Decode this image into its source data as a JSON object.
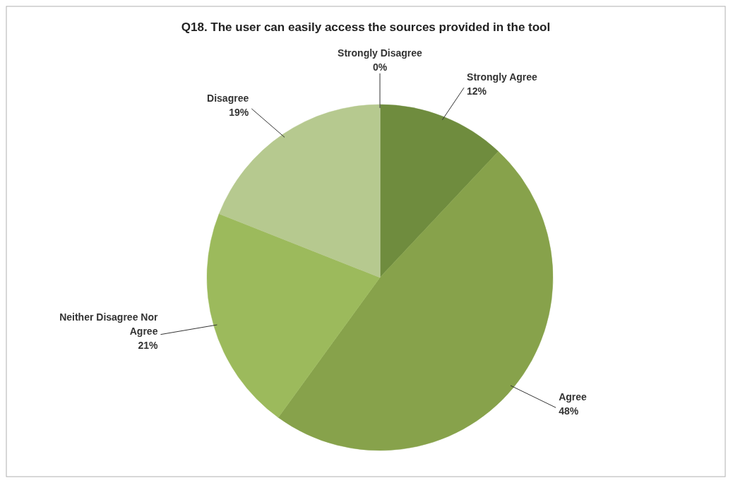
{
  "chart_data": {
    "type": "pie",
    "title": "Q18. The user can easily access the sources provided in the tool",
    "categories": [
      "Strongly Agree",
      "Agree",
      "Neither Disagree Nor Agree",
      "Disagree",
      "Strongly Disagree"
    ],
    "values": [
      12,
      48,
      21,
      19,
      0
    ],
    "value_labels": [
      "12%",
      "48%",
      "21%",
      "19%",
      "0%"
    ],
    "colors": [
      "#6f8c3e",
      "#87a24b",
      "#9cba5c",
      "#b6c98f",
      "#c9d6ae"
    ]
  }
}
